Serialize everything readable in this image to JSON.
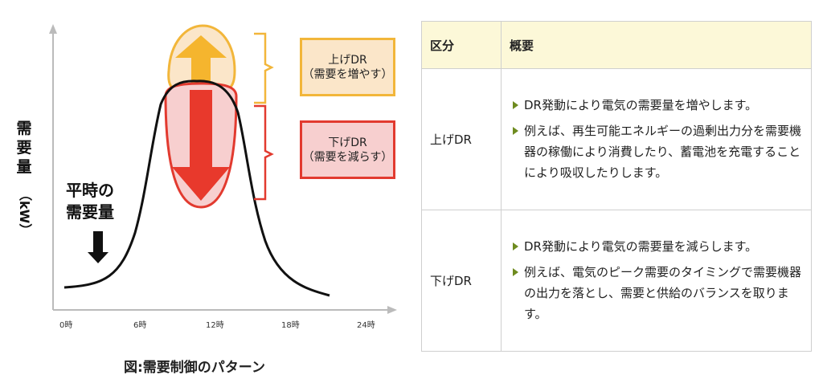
{
  "diagram": {
    "y_axis_label": [
      "需",
      "要",
      "量",
      "（kW）"
    ],
    "normal_demand": [
      "平時の",
      "需要量"
    ],
    "up_label": [
      "上げDR",
      "（需要を増やす）"
    ],
    "down_label": [
      "下げDR",
      "（需要を減らす）"
    ],
    "x_ticks": [
      "0時",
      "6時",
      "12時",
      "18時",
      "24時"
    ],
    "caption": "図:需要制御のパターン",
    "colors": {
      "up": "#f2b63a",
      "up_fill": "#fbe6c9",
      "down": "#e23a2f",
      "down_fill": "#f7cfcf",
      "curve": "#111111"
    }
  },
  "table": {
    "headers": {
      "category": "区分",
      "overview": "概要"
    },
    "rows": [
      {
        "category": "上げDR",
        "bullets": [
          "DR発動により電気の需要量を増やします。",
          "例えば、再生可能エネルギーの過剰出力分を需要機器の稼働により消費したり、蓄電池を充電することにより吸収したりします。"
        ]
      },
      {
        "category": "下げDR",
        "bullets": [
          "DR発動により電気の需要量を減らします。",
          "例えば、電気のピーク需要のタイミングで需要機器の出力を落とし、需要と供給のバランスを取ります。"
        ]
      }
    ]
  }
}
